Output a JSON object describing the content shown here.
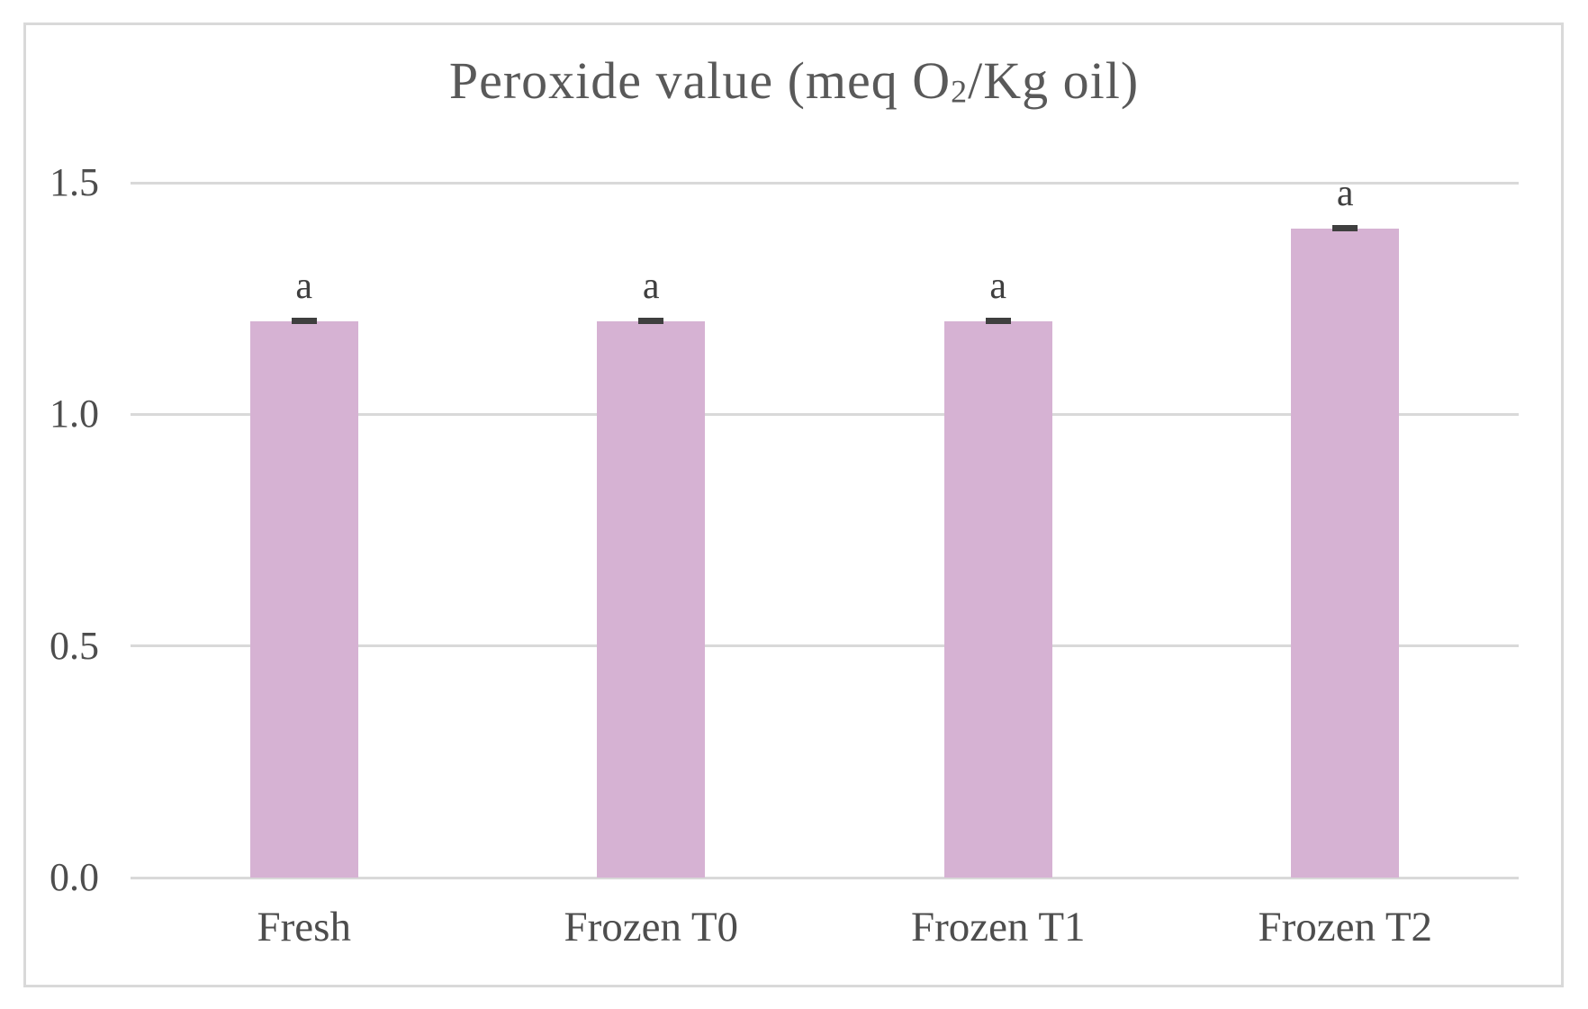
{
  "title_parts": {
    "pre": "Peroxide value (meq O",
    "sub": "2",
    "post": "/Kg oil)"
  },
  "chart_data": {
    "type": "bar",
    "title": "Peroxide value (meq O2/Kg oil)",
    "categories": [
      "Fresh",
      "Frozen T0",
      "Frozen T1",
      "Frozen T2"
    ],
    "values": [
      1.2,
      1.2,
      1.2,
      1.4
    ],
    "bar_annotations": [
      "a",
      "a",
      "a",
      "a"
    ],
    "error_caps_visible": true,
    "xlabel": "",
    "ylabel": "",
    "ylim": [
      0,
      1.5
    ],
    "ytick_labels": [
      "0.0",
      "0.5",
      "1.0",
      "1.5"
    ],
    "ytick_values": [
      0,
      0.5,
      1.0,
      1.5
    ],
    "grid": "horizontal",
    "legend": "none",
    "colors": {
      "bar_fill": "#d6b2d3",
      "gridline": "#d9d9d9",
      "frame_border": "#d9d9d9",
      "title_text": "#595959",
      "axis_text": "#4d4d4d",
      "annotation_text": "#3f3f3f",
      "background": "#ffffff"
    }
  }
}
